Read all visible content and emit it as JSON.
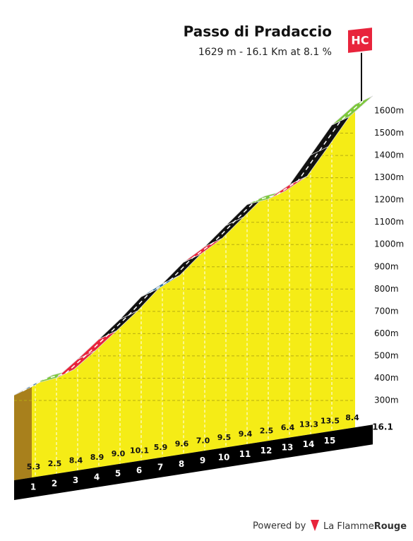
{
  "chart_data": {
    "type": "climb-profile",
    "title": "Passo di Pradaccio",
    "subtitle": "1629 m - 16.1 Km at 8.1 %",
    "category": "HC",
    "km_end": [
      1,
      2,
      3,
      4,
      5,
      6,
      7,
      8,
      9,
      10,
      11,
      12,
      13,
      14,
      15,
      16.1
    ],
    "values": [
      5.3,
      2.5,
      8.4,
      8.9,
      9.0,
      10.1,
      5.9,
      9.6,
      7.0,
      9.5,
      9.4,
      2.5,
      6.4,
      13.3,
      13.5,
      8.4
    ],
    "value_labels": [
      "5.3",
      "2.5",
      "8.4",
      "8.9",
      "9.0",
      "10.1",
      "5.9",
      "9.6",
      "7.0",
      "9.5",
      "9.4",
      "2.5",
      "6.4",
      "13.3",
      "13.5",
      "8.4"
    ],
    "colors": [
      "#1f6fa0",
      "#7cc83a",
      "#e8243c",
      "#e8243c",
      "#111111",
      "#111111",
      "#1f6fa0",
      "#111111",
      "#e8243c",
      "#111111",
      "#111111",
      "#7cc83a",
      "#e8243c",
      "#111111",
      "#111111",
      "#7cc83a"
    ],
    "ylim": [
      300,
      1600
    ],
    "yticks": [
      {
        "value": 300,
        "label": "300m"
      },
      {
        "value": 400,
        "label": "400m"
      },
      {
        "value": 500,
        "label": "500m"
      },
      {
        "value": 600,
        "label": "600m"
      },
      {
        "value": 700,
        "label": "700m"
      },
      {
        "value": 800,
        "label": "800m"
      },
      {
        "value": 900,
        "label": "900m"
      },
      {
        "value": 1000,
        "label": "1000m"
      },
      {
        "value": 1100,
        "label": "1100m"
      },
      {
        "value": 1200,
        "label": "1200m"
      },
      {
        "value": 1300,
        "label": "1300m"
      },
      {
        "value": 1400,
        "label": "1400m"
      },
      {
        "value": 1500,
        "label": "1500m"
      },
      {
        "value": 1600,
        "label": "1600m"
      }
    ],
    "grid": true
  },
  "footer": {
    "powered_by": "Powered by",
    "brand_a": "La Flamme",
    "brand_b": "Rouge"
  }
}
